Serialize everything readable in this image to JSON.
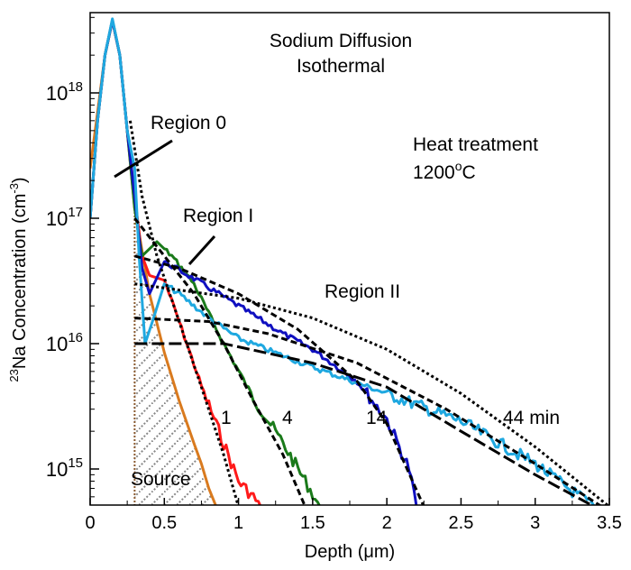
{
  "chart_data": {
    "type": "line",
    "title": [
      "Sodium Diffusion",
      "Isothermal"
    ],
    "xlabel": "Depth (μm)",
    "ylabel": {
      "pre": "23",
      "main": "Na Concentration (cm",
      "sup": "-3",
      "post": ")"
    },
    "xlim": [
      0,
      3.5
    ],
    "ylim": [
      500000000000000.0,
      4.5e+18
    ],
    "yscale": "log",
    "xticks": [
      "0",
      "0.5",
      "1",
      "1.5",
      "2",
      "2.5",
      "3",
      "3.5"
    ],
    "yticks": [
      {
        "base": "10",
        "exp": "15"
      },
      {
        "base": "10",
        "exp": "16"
      },
      {
        "base": "10",
        "exp": "17"
      },
      {
        "base": "10",
        "exp": "18"
      }
    ],
    "annotations": {
      "treatment": [
        "Heat treatment",
        "1200",
        "o",
        "C"
      ],
      "region0": "Region 0",
      "region1": "Region I",
      "region2": "Region II",
      "source": "Source",
      "curve_labels": [
        "1",
        "4",
        "14",
        "44 min"
      ]
    },
    "series": [
      {
        "name": "Source",
        "color": "#d97a1e",
        "x": [
          0,
          0.05,
          0.1,
          0.15,
          0.2,
          0.25,
          0.3,
          0.4,
          0.5,
          0.6,
          0.7,
          0.75,
          0.8,
          0.85
        ],
        "y": [
          2.5e+17,
          7e+17,
          2e+18,
          3.8e+18,
          2e+18,
          5e+17,
          1.2e+17,
          2.5e+16,
          8500000000000000.0,
          3500000000000000.0,
          1600000000000000.0,
          1100000000000000.0,
          700000000000000.0,
          500000000000000.0
        ]
      },
      {
        "name": "1",
        "color": "#ff1a1a",
        "x": [
          0,
          0.05,
          0.1,
          0.15,
          0.2,
          0.25,
          0.3,
          0.35,
          0.4,
          0.5,
          0.6,
          0.75,
          0.9,
          1.0,
          1.1,
          1.15
        ],
        "y": [
          1e+17,
          6e+17,
          2e+18,
          3.8e+18,
          2e+18,
          5e+17,
          1.5e+17,
          5e+16,
          3.5e+16,
          3.2e+16,
          1.5e+16,
          4600000000000000.0,
          1600000000000000.0,
          800000000000000.0,
          600000000000000.0,
          500000000000000.0
        ]
      },
      {
        "name": "4",
        "color": "#1a7a1a",
        "x": [
          0,
          0.05,
          0.1,
          0.15,
          0.2,
          0.25,
          0.3,
          0.35,
          0.45,
          0.55,
          0.7,
          0.9,
          1.1,
          1.3,
          1.45,
          1.55
        ],
        "y": [
          1e+17,
          6e+17,
          2e+18,
          3.8e+18,
          2e+18,
          5e+17,
          1.2e+17,
          5e+16,
          6.5e+16,
          5e+16,
          3e+16,
          1e+16,
          3700000000000000.0,
          1600000000000000.0,
          800000000000000.0,
          500000000000000.0
        ]
      },
      {
        "name": "14",
        "color": "#1010c0",
        "x": [
          0,
          0.05,
          0.1,
          0.15,
          0.2,
          0.25,
          0.3,
          0.35,
          0.4,
          0.5,
          0.7,
          1.0,
          1.3,
          1.5,
          1.8,
          2.0,
          2.15,
          2.2
        ],
        "y": [
          1e+17,
          6e+17,
          2e+18,
          3.8e+18,
          2e+18,
          5e+17,
          1.5e+17,
          4e+16,
          2.5e+16,
          4.5e+16,
          3.3e+16,
          2e+16,
          1.2e+16,
          9000000000000000.0,
          5000000000000000.0,
          2500000000000000.0,
          1000000000000000.0,
          500000000000000.0
        ]
      },
      {
        "name": "44 min",
        "color": "#1fa8e0",
        "x": [
          0,
          0.05,
          0.1,
          0.15,
          0.2,
          0.25,
          0.3,
          0.33,
          0.37,
          0.42,
          0.5,
          0.6,
          0.8,
          1.0,
          1.3,
          1.5,
          2.0,
          2.5,
          3.0,
          3.3,
          3.4
        ],
        "y": [
          1e+17,
          6e+17,
          2e+18,
          3.9e+18,
          2e+18,
          5e+17,
          2.5e+17,
          5e+16,
          1e+16,
          1.5e+16,
          3e+16,
          2.5e+16,
          1.6e+16,
          1.1e+16,
          8000000000000000.0,
          6500000000000000.0,
          4000000000000000.0,
          2400000000000000.0,
          1100000000000000.0,
          600000000000000.0,
          500000000000000.0
        ]
      }
    ],
    "fits": [
      {
        "style": "dotted",
        "x": [
          0.27,
          0.35,
          0.45,
          0.6,
          0.75,
          0.9,
          1.0
        ],
        "y": [
          6e+17,
          1.5e+17,
          5e+16,
          1.5e+16,
          4500000000000000.0,
          1300000000000000.0,
          500000000000000.0
        ]
      },
      {
        "style": "dashed",
        "x": [
          0.3,
          0.5,
          0.7,
          0.9,
          1.1,
          1.3,
          1.45
        ],
        "y": [
          1e+17,
          5e+16,
          2.5e+16,
          1e+16,
          3500000000000000.0,
          1300000000000000.0,
          500000000000000.0
        ]
      },
      {
        "style": "dashed",
        "x": [
          0.3,
          0.6,
          1.0,
          1.4,
          1.8,
          2.0,
          2.25
        ],
        "y": [
          5e+16,
          4e+16,
          2.5e+16,
          1.3e+16,
          5000000000000000.0,
          2300000000000000.0,
          500000000000000.0
        ]
      },
      {
        "style": "dotted",
        "x": [
          0.3,
          1.0,
          1.5,
          2.0,
          2.5,
          3.0,
          3.5
        ],
        "y": [
          3e+16,
          2.3e+16,
          1.6e+16,
          9000000000000000.0,
          4000000000000000.0,
          1500000000000000.0,
          500000000000000.0
        ]
      },
      {
        "style": "dashed",
        "x": [
          0.3,
          0.8,
          1.2,
          1.8,
          2.4,
          3.0,
          3.45
        ],
        "y": [
          1.6e+16,
          1.5e+16,
          1.2e+16,
          7000000000000000.0,
          3000000000000000.0,
          1100000000000000.0,
          500000000000000.0
        ]
      },
      {
        "style": "longdash",
        "x": [
          0.3,
          0.9,
          1.5,
          2.0,
          2.5,
          3.0,
          3.4
        ],
        "y": [
          1e+16,
          1e+16,
          7000000000000000.0,
          4500000000000000.0,
          2000000000000000.0,
          900000000000000.0,
          500000000000000.0
        ]
      }
    ]
  }
}
